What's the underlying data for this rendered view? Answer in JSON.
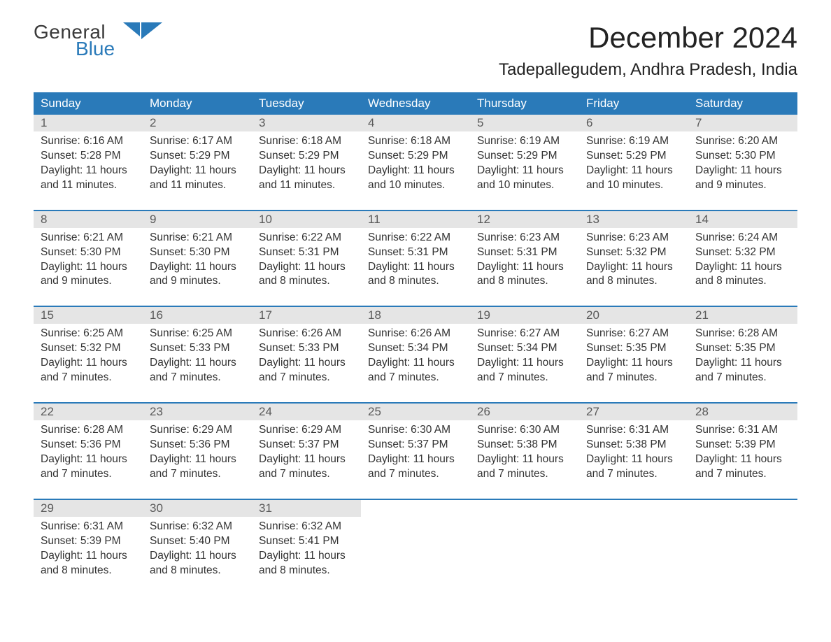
{
  "logo": {
    "word1": "General",
    "word2": "Blue"
  },
  "title": "December 2024",
  "location": "Tadepallegudem, Andhra Pradesh, India",
  "colors": {
    "header_bg": "#2a7ab9",
    "header_text": "#ffffff",
    "daynum_bg": "#e5e5e5",
    "daynum_text": "#5a5a5a",
    "body_text": "#333333",
    "week_border": "#2a7ab9",
    "page_bg": "#ffffff",
    "logo_gray": "#3a3a3a",
    "logo_blue": "#2a7ab9"
  },
  "typography": {
    "title_fontsize": 42,
    "location_fontsize": 24,
    "dow_fontsize": 17,
    "daynum_fontsize": 17,
    "body_fontsize": 15.5,
    "font_family": "Arial"
  },
  "layout": {
    "columns": 7,
    "rows": 5,
    "cell_padding": "4px 10px 10px 10px",
    "week_border_width": 2
  },
  "dow": [
    "Sunday",
    "Monday",
    "Tuesday",
    "Wednesday",
    "Thursday",
    "Friday",
    "Saturday"
  ],
  "weeks": [
    [
      {
        "n": "1",
        "sunrise": "Sunrise: 6:16 AM",
        "sunset": "Sunset: 5:28 PM",
        "d1": "Daylight: 11 hours",
        "d2": "and 11 minutes."
      },
      {
        "n": "2",
        "sunrise": "Sunrise: 6:17 AM",
        "sunset": "Sunset: 5:29 PM",
        "d1": "Daylight: 11 hours",
        "d2": "and 11 minutes."
      },
      {
        "n": "3",
        "sunrise": "Sunrise: 6:18 AM",
        "sunset": "Sunset: 5:29 PM",
        "d1": "Daylight: 11 hours",
        "d2": "and 11 minutes."
      },
      {
        "n": "4",
        "sunrise": "Sunrise: 6:18 AM",
        "sunset": "Sunset: 5:29 PM",
        "d1": "Daylight: 11 hours",
        "d2": "and 10 minutes."
      },
      {
        "n": "5",
        "sunrise": "Sunrise: 6:19 AM",
        "sunset": "Sunset: 5:29 PM",
        "d1": "Daylight: 11 hours",
        "d2": "and 10 minutes."
      },
      {
        "n": "6",
        "sunrise": "Sunrise: 6:19 AM",
        "sunset": "Sunset: 5:29 PM",
        "d1": "Daylight: 11 hours",
        "d2": "and 10 minutes."
      },
      {
        "n": "7",
        "sunrise": "Sunrise: 6:20 AM",
        "sunset": "Sunset: 5:30 PM",
        "d1": "Daylight: 11 hours",
        "d2": "and 9 minutes."
      }
    ],
    [
      {
        "n": "8",
        "sunrise": "Sunrise: 6:21 AM",
        "sunset": "Sunset: 5:30 PM",
        "d1": "Daylight: 11 hours",
        "d2": "and 9 minutes."
      },
      {
        "n": "9",
        "sunrise": "Sunrise: 6:21 AM",
        "sunset": "Sunset: 5:30 PM",
        "d1": "Daylight: 11 hours",
        "d2": "and 9 minutes."
      },
      {
        "n": "10",
        "sunrise": "Sunrise: 6:22 AM",
        "sunset": "Sunset: 5:31 PM",
        "d1": "Daylight: 11 hours",
        "d2": "and 8 minutes."
      },
      {
        "n": "11",
        "sunrise": "Sunrise: 6:22 AM",
        "sunset": "Sunset: 5:31 PM",
        "d1": "Daylight: 11 hours",
        "d2": "and 8 minutes."
      },
      {
        "n": "12",
        "sunrise": "Sunrise: 6:23 AM",
        "sunset": "Sunset: 5:31 PM",
        "d1": "Daylight: 11 hours",
        "d2": "and 8 minutes."
      },
      {
        "n": "13",
        "sunrise": "Sunrise: 6:23 AM",
        "sunset": "Sunset: 5:32 PM",
        "d1": "Daylight: 11 hours",
        "d2": "and 8 minutes."
      },
      {
        "n": "14",
        "sunrise": "Sunrise: 6:24 AM",
        "sunset": "Sunset: 5:32 PM",
        "d1": "Daylight: 11 hours",
        "d2": "and 8 minutes."
      }
    ],
    [
      {
        "n": "15",
        "sunrise": "Sunrise: 6:25 AM",
        "sunset": "Sunset: 5:32 PM",
        "d1": "Daylight: 11 hours",
        "d2": "and 7 minutes."
      },
      {
        "n": "16",
        "sunrise": "Sunrise: 6:25 AM",
        "sunset": "Sunset: 5:33 PM",
        "d1": "Daylight: 11 hours",
        "d2": "and 7 minutes."
      },
      {
        "n": "17",
        "sunrise": "Sunrise: 6:26 AM",
        "sunset": "Sunset: 5:33 PM",
        "d1": "Daylight: 11 hours",
        "d2": "and 7 minutes."
      },
      {
        "n": "18",
        "sunrise": "Sunrise: 6:26 AM",
        "sunset": "Sunset: 5:34 PM",
        "d1": "Daylight: 11 hours",
        "d2": "and 7 minutes."
      },
      {
        "n": "19",
        "sunrise": "Sunrise: 6:27 AM",
        "sunset": "Sunset: 5:34 PM",
        "d1": "Daylight: 11 hours",
        "d2": "and 7 minutes."
      },
      {
        "n": "20",
        "sunrise": "Sunrise: 6:27 AM",
        "sunset": "Sunset: 5:35 PM",
        "d1": "Daylight: 11 hours",
        "d2": "and 7 minutes."
      },
      {
        "n": "21",
        "sunrise": "Sunrise: 6:28 AM",
        "sunset": "Sunset: 5:35 PM",
        "d1": "Daylight: 11 hours",
        "d2": "and 7 minutes."
      }
    ],
    [
      {
        "n": "22",
        "sunrise": "Sunrise: 6:28 AM",
        "sunset": "Sunset: 5:36 PM",
        "d1": "Daylight: 11 hours",
        "d2": "and 7 minutes."
      },
      {
        "n": "23",
        "sunrise": "Sunrise: 6:29 AM",
        "sunset": "Sunset: 5:36 PM",
        "d1": "Daylight: 11 hours",
        "d2": "and 7 minutes."
      },
      {
        "n": "24",
        "sunrise": "Sunrise: 6:29 AM",
        "sunset": "Sunset: 5:37 PM",
        "d1": "Daylight: 11 hours",
        "d2": "and 7 minutes."
      },
      {
        "n": "25",
        "sunrise": "Sunrise: 6:30 AM",
        "sunset": "Sunset: 5:37 PM",
        "d1": "Daylight: 11 hours",
        "d2": "and 7 minutes."
      },
      {
        "n": "26",
        "sunrise": "Sunrise: 6:30 AM",
        "sunset": "Sunset: 5:38 PM",
        "d1": "Daylight: 11 hours",
        "d2": "and 7 minutes."
      },
      {
        "n": "27",
        "sunrise": "Sunrise: 6:31 AM",
        "sunset": "Sunset: 5:38 PM",
        "d1": "Daylight: 11 hours",
        "d2": "and 7 minutes."
      },
      {
        "n": "28",
        "sunrise": "Sunrise: 6:31 AM",
        "sunset": "Sunset: 5:39 PM",
        "d1": "Daylight: 11 hours",
        "d2": "and 7 minutes."
      }
    ],
    [
      {
        "n": "29",
        "sunrise": "Sunrise: 6:31 AM",
        "sunset": "Sunset: 5:39 PM",
        "d1": "Daylight: 11 hours",
        "d2": "and 8 minutes."
      },
      {
        "n": "30",
        "sunrise": "Sunrise: 6:32 AM",
        "sunset": "Sunset: 5:40 PM",
        "d1": "Daylight: 11 hours",
        "d2": "and 8 minutes."
      },
      {
        "n": "31",
        "sunrise": "Sunrise: 6:32 AM",
        "sunset": "Sunset: 5:41 PM",
        "d1": "Daylight: 11 hours",
        "d2": "and 8 minutes."
      },
      {
        "n": "",
        "sunrise": "",
        "sunset": "",
        "d1": "",
        "d2": ""
      },
      {
        "n": "",
        "sunrise": "",
        "sunset": "",
        "d1": "",
        "d2": ""
      },
      {
        "n": "",
        "sunrise": "",
        "sunset": "",
        "d1": "",
        "d2": ""
      },
      {
        "n": "",
        "sunrise": "",
        "sunset": "",
        "d1": "",
        "d2": ""
      }
    ]
  ]
}
